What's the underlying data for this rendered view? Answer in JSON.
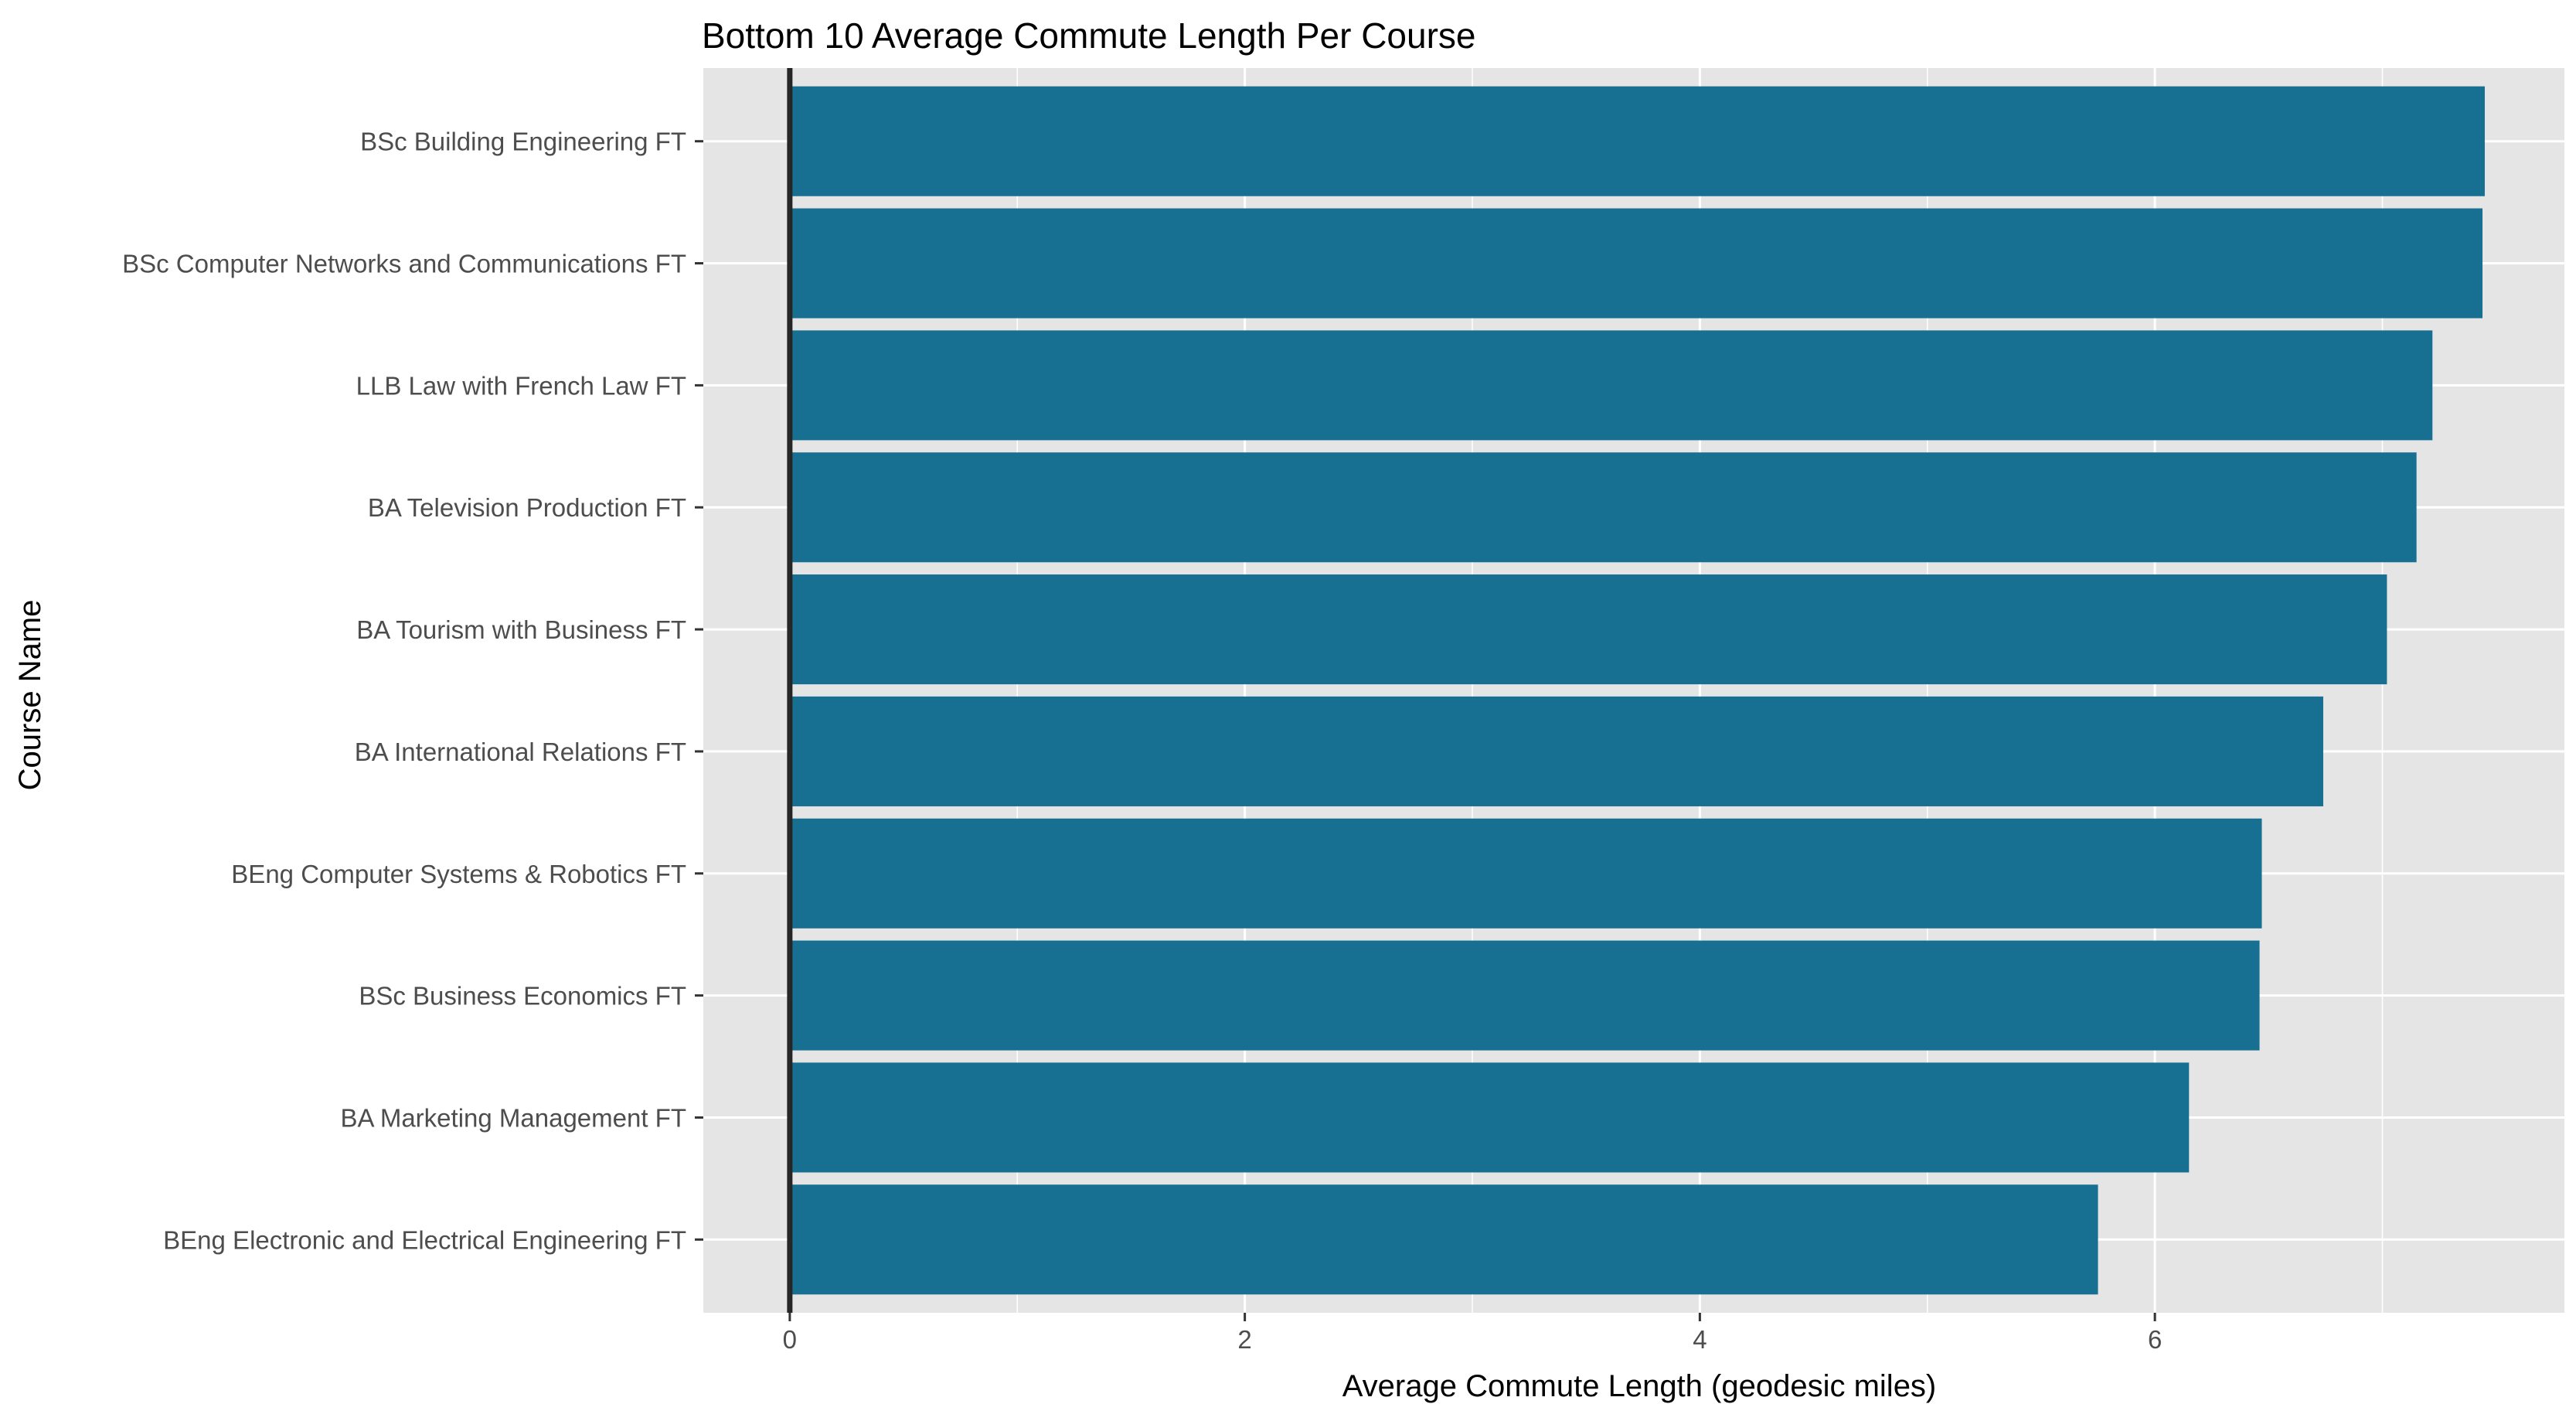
{
  "chart_data": {
    "type": "bar",
    "orientation": "horizontal",
    "title": "Bottom 10 Average Commute Length Per Course",
    "xlabel": "Average Commute Length (geodesic miles)",
    "ylabel": "Course Name",
    "categories": [
      "BSc Building Engineering FT",
      "BSc Computer Networks and Communications FT",
      "LLB Law with French Law FT",
      "BA Television Production FT",
      "BA Tourism with Business FT",
      "BA International Relations FT",
      "BEng Computer Systems & Robotics FT",
      "BSc Business Economics FT",
      "BA Marketing Management FT",
      "BEng Electronic and Electrical Engineering FT"
    ],
    "values": [
      7.45,
      7.44,
      7.22,
      7.15,
      7.02,
      6.74,
      6.47,
      6.46,
      6.15,
      5.75
    ],
    "xlim": [
      -0.38,
      7.8
    ],
    "xticks": [
      0,
      2,
      4,
      6
    ],
    "grid": true,
    "zero_line": true,
    "bar_color": "#176f91",
    "panel_background": "#e5e5e5",
    "grid_color": "#ffffff"
  }
}
